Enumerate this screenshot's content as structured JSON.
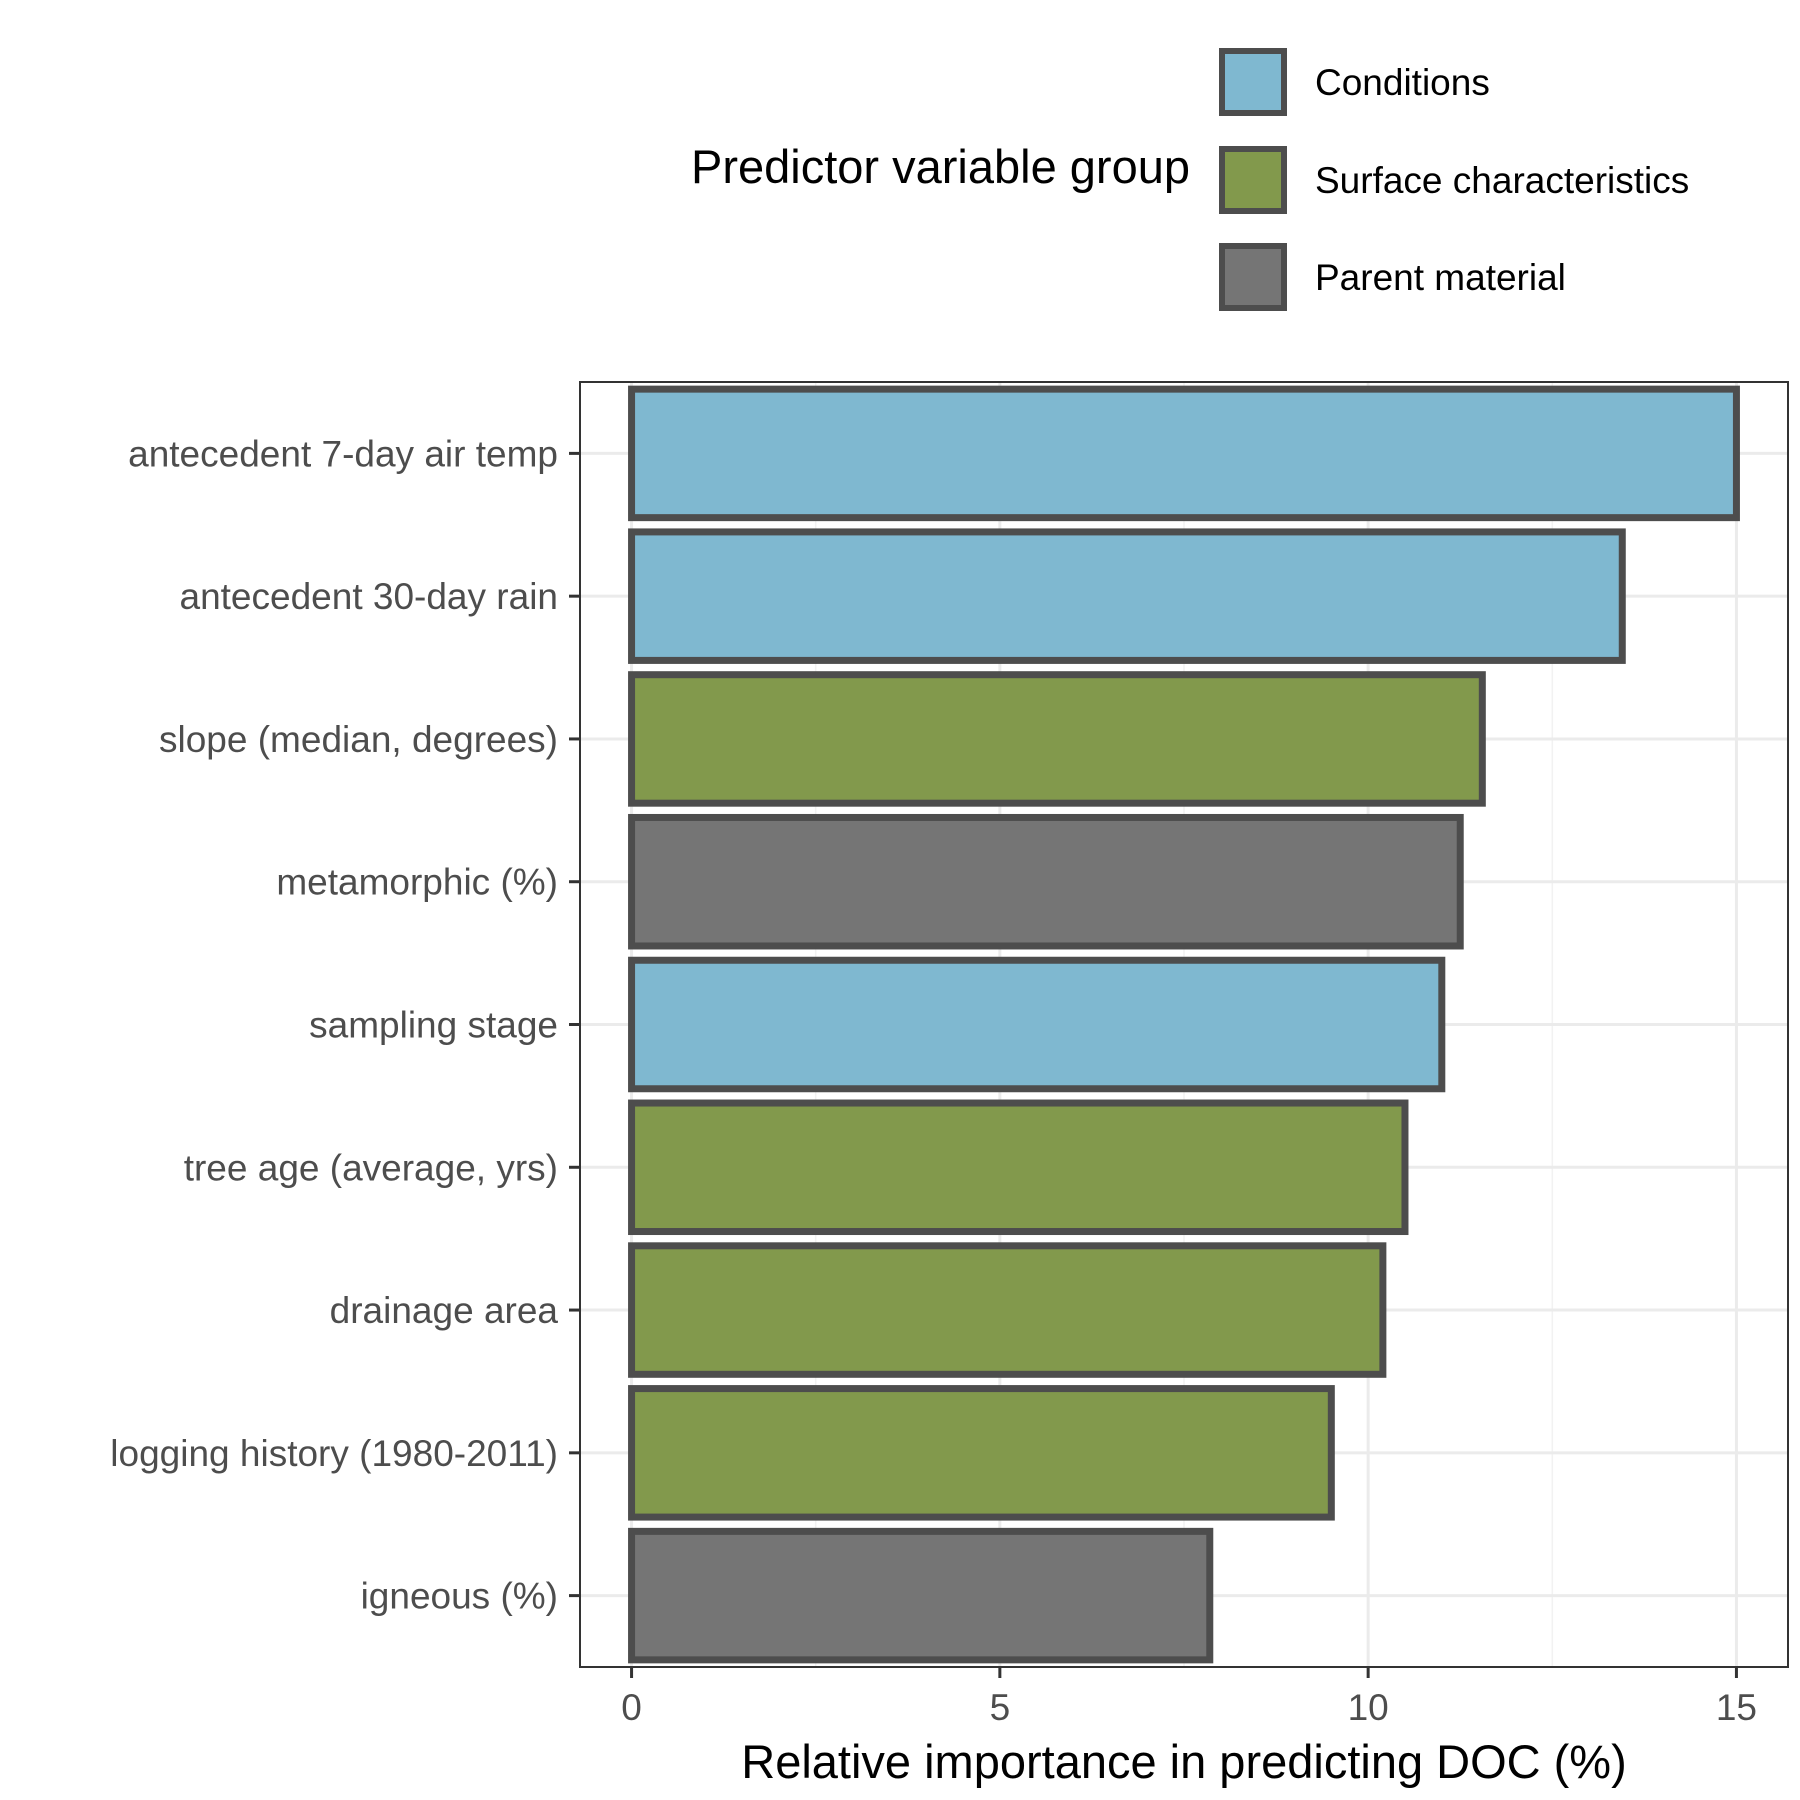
{
  "chart_data": {
    "type": "bar",
    "orientation": "horizontal",
    "xlabel": "Relative importance in predicting DOC (%)",
    "ylabel": "",
    "xlim": [
      -0.7,
      15.7
    ],
    "x_ticks": [
      0,
      5,
      10,
      15
    ],
    "grid": true,
    "legend": {
      "title": "Predictor variable group",
      "placement": "top",
      "entries": [
        {
          "name": "Conditions",
          "color": "#7fb8d0"
        },
        {
          "name": "Surface characteristics",
          "color": "#82994c"
        },
        {
          "name": "Parent material",
          "color": "#757575"
        }
      ]
    },
    "bar_outline_color": "#4d4d4d",
    "categories": [
      "antecedent 7-day air temp",
      "antecedent 30-day rain",
      "slope (median, degrees)",
      "metamorphic (%)",
      "sampling stage",
      "tree age (average, yrs)",
      "drainage area",
      "logging history (1980-2011)",
      "igneous (%)"
    ],
    "values": [
      15.0,
      13.45,
      11.55,
      11.25,
      11.0,
      10.5,
      10.2,
      9.5,
      7.85
    ],
    "groups": [
      "Conditions",
      "Conditions",
      "Surface characteristics",
      "Parent material",
      "Conditions",
      "Surface characteristics",
      "Surface characteristics",
      "Surface characteristics",
      "Parent material"
    ]
  }
}
